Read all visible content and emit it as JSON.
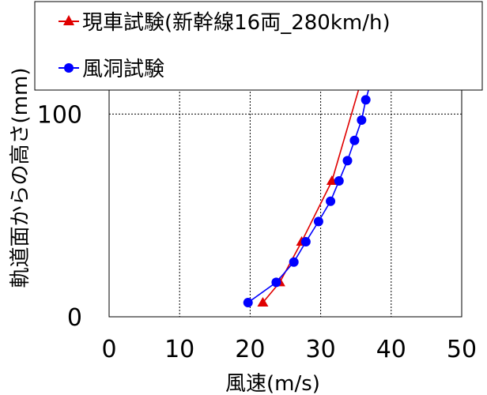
{
  "chart_data": {
    "type": "line",
    "xlabel": "風速(m/s)",
    "ylabel": "軌道面からの高さ(mm)",
    "xlim": [
      0,
      50
    ],
    "ylim": [
      0,
      150
    ],
    "x_ticks": [
      "0",
      "10",
      "20",
      "30",
      "40",
      "50"
    ],
    "y_ticks": [
      "0",
      "100"
    ],
    "grid": true,
    "legend_position": "top",
    "series": [
      {
        "name": "現車試験(新幹線16両_280km/h)",
        "marker": "triangle",
        "color": "#e00000",
        "points": [
          {
            "x": 21.8,
            "y": 7
          },
          {
            "x": 24.2,
            "y": 17
          },
          {
            "x": 27.3,
            "y": 37
          },
          {
            "x": 31.6,
            "y": 67
          },
          {
            "x": 35.8,
            "y": 117
          },
          {
            "x": 38.6,
            "y": 150
          }
        ]
      },
      {
        "name": "風洞試験",
        "marker": "circle",
        "color": "#0000ff",
        "points": [
          {
            "x": 19.7,
            "y": 7
          },
          {
            "x": 23.7,
            "y": 17
          },
          {
            "x": 26.2,
            "y": 27
          },
          {
            "x": 27.9,
            "y": 37
          },
          {
            "x": 29.7,
            "y": 47
          },
          {
            "x": 31.4,
            "y": 57
          },
          {
            "x": 32.6,
            "y": 67
          },
          {
            "x": 33.8,
            "y": 77
          },
          {
            "x": 34.8,
            "y": 87
          },
          {
            "x": 35.8,
            "y": 97
          },
          {
            "x": 36.4,
            "y": 107
          },
          {
            "x": 37.2,
            "y": 117
          },
          {
            "x": 37.9,
            "y": 127
          },
          {
            "x": 38.3,
            "y": 137
          },
          {
            "x": 38.7,
            "y": 147
          }
        ]
      }
    ]
  }
}
